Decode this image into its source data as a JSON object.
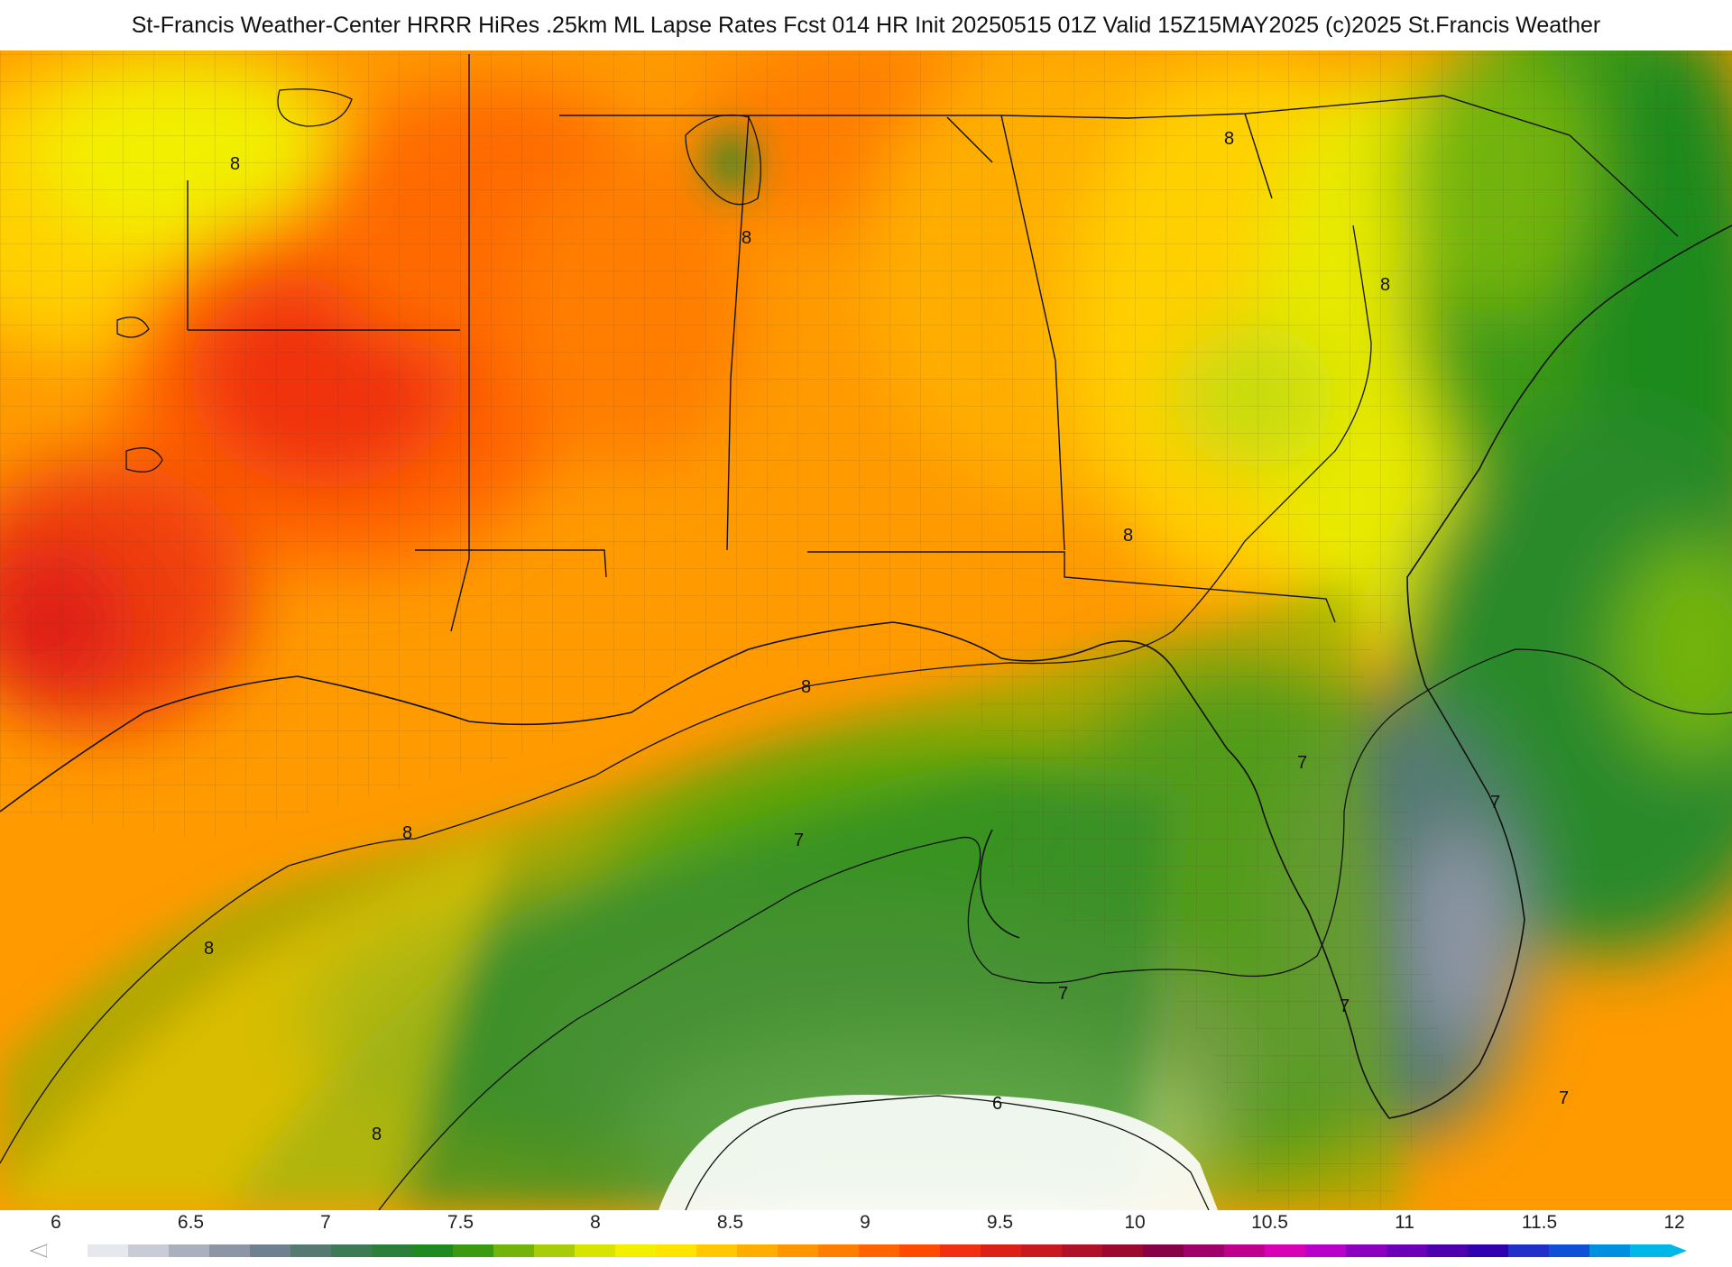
{
  "title": "St-Francis Weather-Center HRRR HiRes .25km ML Lapse Rates  Fcst 014 HR Init 20250515 01Z  Valid 15Z15MAY2025    (c)2025 St.Francis Weather",
  "map": {
    "contour_labels": [
      "8",
      "8",
      "8",
      "8",
      "8",
      "8",
      "8",
      "8",
      "7",
      "7",
      "7",
      "7",
      "7",
      "7",
      "6"
    ]
  },
  "scale": {
    "ticks": [
      "6",
      "6.5",
      "7",
      "7.5",
      "8",
      "8.5",
      "9",
      "9.5",
      "10",
      "10.5",
      "11",
      "11.5",
      "12"
    ],
    "colors": [
      "#ffffff",
      "#e6e8ee",
      "#c9ccd6",
      "#aab0bd",
      "#8e96a6",
      "#6f8190",
      "#557a72",
      "#3e7a55",
      "#2c7f3a",
      "#1f8a1f",
      "#3a9a12",
      "#72b40a",
      "#a8cc08",
      "#d8e400",
      "#f2ef00",
      "#ffe400",
      "#ffc800",
      "#ffae00",
      "#ff9600",
      "#ff7e00",
      "#ff6400",
      "#ff4a00",
      "#f03010",
      "#dc2018",
      "#c81820",
      "#b01028",
      "#9c0830",
      "#880048",
      "#a0006a",
      "#c0008c",
      "#d800b4",
      "#b800c8",
      "#8c00c0",
      "#6c00b8",
      "#4c00b0",
      "#3000b0",
      "#2030c8",
      "#1050d8",
      "#0090e0",
      "#00b8e8"
    ]
  }
}
